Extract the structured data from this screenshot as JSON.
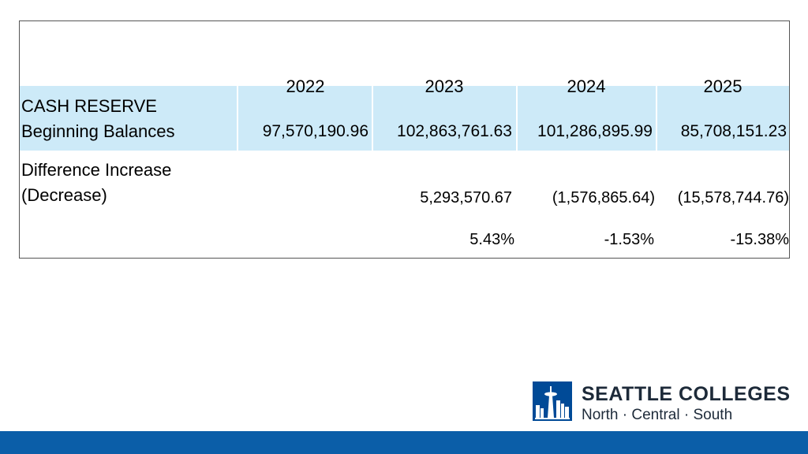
{
  "table": {
    "years": [
      "2022",
      "2023",
      "2024",
      "2025"
    ],
    "cash_reserve": {
      "label_line1": "CASH RESERVE",
      "label_line2": "Beginning Balances",
      "values": [
        "97,570,190.96",
        "102,863,761.63",
        "101,286,895.99",
        "85,708,151.23"
      ]
    },
    "difference": {
      "label_line1": "Difference Increase",
      "label_line2": "(Decrease)",
      "values": [
        "",
        "5,293,570.67",
        "(1,576,865.64)",
        "(15,578,744.76)"
      ],
      "percents": [
        "",
        "5.43%",
        "-1.53%",
        "-15.38%"
      ]
    }
  },
  "logo": {
    "title": "SEATTLE COLLEGES",
    "subtitle": "North · Central · South"
  },
  "colors": {
    "highlight_row": "#cdeaf8",
    "brand_blue": "#004a97",
    "bottom_bar": "#0b5ea8"
  }
}
